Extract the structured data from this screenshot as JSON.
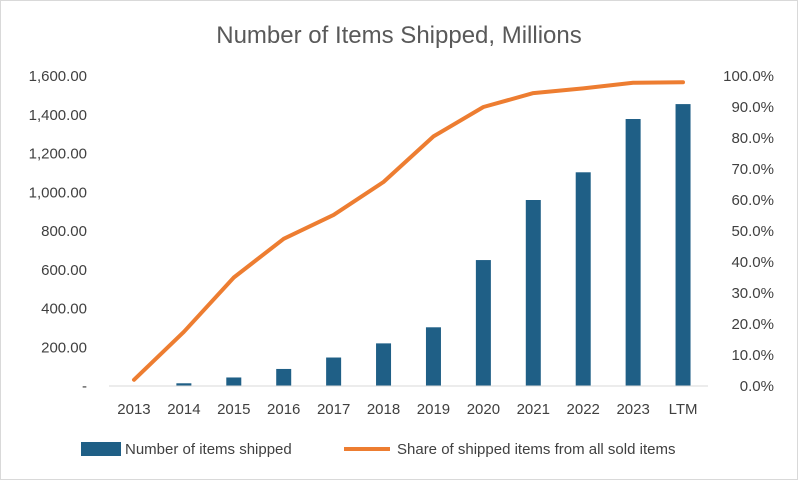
{
  "chart_data": {
    "type": "bar",
    "title": "Number of Items Shipped, Millions",
    "categories": [
      "2013",
      "2014",
      "2015",
      "2016",
      "2017",
      "2018",
      "2019",
      "2020",
      "2021",
      "2022",
      "2023",
      "LTM"
    ],
    "series": [
      {
        "name": "Number of items shipped",
        "type": "bar",
        "axis": "left",
        "color": "#1f5f86",
        "values": [
          2,
          14,
          44,
          88,
          147,
          220,
          303,
          650,
          960,
          1103,
          1378,
          1455
        ]
      },
      {
        "name": "Share of shipped items from all sold items",
        "type": "line",
        "axis": "right",
        "color": "#ed7d31",
        "values": [
          0.02,
          0.175,
          0.35,
          0.475,
          0.552,
          0.658,
          0.805,
          0.9,
          0.945,
          0.96,
          0.978,
          0.98
        ]
      }
    ],
    "y_left": {
      "range": [
        0,
        1600
      ],
      "ticks": [
        0,
        200,
        400,
        600,
        800,
        1000,
        1200,
        1400,
        1600
      ],
      "tick_labels": [
        "-",
        "200.00",
        "400.00",
        "600.00",
        "800.00",
        "1,000.00",
        "1,200.00",
        "1,400.00",
        "1,600.00"
      ]
    },
    "y_right": {
      "range": [
        0,
        1
      ],
      "ticks": [
        0,
        0.1,
        0.2,
        0.3,
        0.4,
        0.5,
        0.6,
        0.7,
        0.8,
        0.9,
        1.0
      ],
      "tick_labels": [
        "0.0%",
        "10.0%",
        "20.0%",
        "30.0%",
        "40.0%",
        "50.0%",
        "60.0%",
        "70.0%",
        "80.0%",
        "90.0%",
        "100.0%"
      ]
    },
    "xlabel": "",
    "ylabel": "",
    "grid": false,
    "legend_position": "bottom"
  }
}
